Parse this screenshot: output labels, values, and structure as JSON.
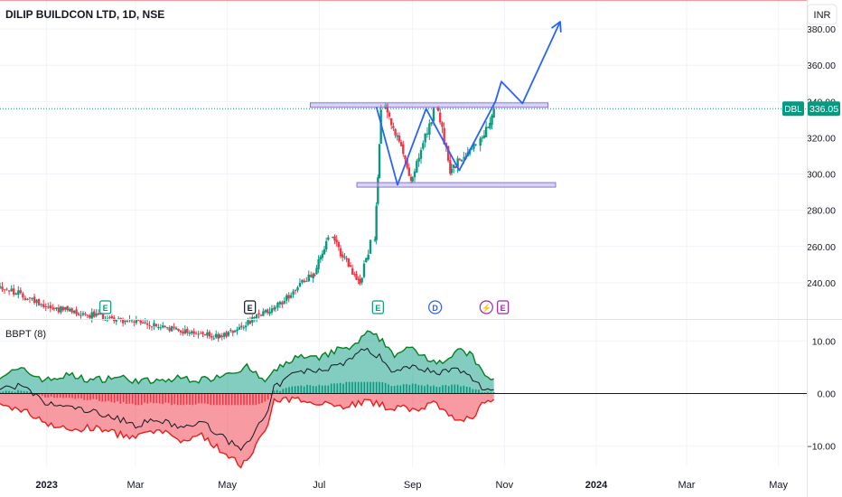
{
  "header": {
    "symbol_title": "DILIP BUILDCON LTD, 1D, NSE",
    "currency": "INR"
  },
  "price_label": {
    "ticker": "DBL",
    "value": "336.05"
  },
  "events": [
    {
      "glyph": "E",
      "date": "2023-02-09",
      "color": "#089981"
    },
    {
      "glyph": "E",
      "date": "2023-05-16",
      "color": "#131722"
    },
    {
      "glyph": "E",
      "date": "2023-08-09",
      "color": "#089981"
    },
    {
      "glyph": "D",
      "date": "2023-09-16",
      "color": "#2962ff"
    },
    {
      "glyph": "⚡",
      "date": "2023-10-20",
      "color": "#9c27b0"
    },
    {
      "glyph": "E",
      "date": "2023-10-31",
      "color": "#9c27b0"
    }
  ],
  "indicator": {
    "label": "BBPT (8)",
    "upper_level": 2.0,
    "lower_level": -2.0
  },
  "chart_data": [
    {
      "type": "candlestick",
      "pane": "price",
      "x_start": "2022-12-01",
      "x_end": "2024-05-15",
      "ylim": [
        220,
        396
      ],
      "yticks": [
        240,
        260,
        280,
        300,
        320,
        340,
        360,
        380
      ],
      "ytick_labels": [
        "240.00",
        "260.00",
        "280.00",
        "300.00",
        "320.00",
        "340.00",
        "360.00",
        "380.00"
      ],
      "last_price": 336.05,
      "colors": {
        "up": "#089981",
        "down": "#f23645"
      },
      "segments": [
        {
          "from": "2022-12-01",
          "to": "2023-01-05",
          "start": 238,
          "end": 226,
          "days": 24
        },
        {
          "from": "2023-01-06",
          "to": "2023-04-25",
          "start": 226,
          "end": 210,
          "days": 75
        },
        {
          "from": "2023-04-26",
          "to": "2023-06-01",
          "start": 210,
          "end": 226,
          "days": 26
        },
        {
          "from": "2023-06-02",
          "to": "2023-06-27",
          "start": 226,
          "end": 246,
          "days": 18
        },
        {
          "from": "2023-06-28",
          "to": "2023-07-07",
          "start": 246,
          "end": 264,
          "days": 8
        },
        {
          "from": "2023-07-10",
          "to": "2023-07-27",
          "start": 264,
          "end": 240,
          "days": 14
        },
        {
          "from": "2023-07-28",
          "to": "2023-08-04",
          "start": 240,
          "end": 262,
          "days": 6
        },
        {
          "from": "2023-08-07",
          "to": "2023-08-11",
          "start": 262,
          "end": 338,
          "days": 5
        },
        {
          "from": "2023-08-14",
          "to": "2023-08-31",
          "start": 338,
          "end": 298,
          "days": 14
        },
        {
          "from": "2023-09-01",
          "to": "2023-09-15",
          "start": 298,
          "end": 334,
          "days": 11
        },
        {
          "from": "2023-09-18",
          "to": "2023-09-26",
          "start": 334,
          "end": 302,
          "days": 7
        },
        {
          "from": "2023-09-27",
          "to": "2023-10-13",
          "start": 302,
          "end": 318,
          "days": 13
        },
        {
          "from": "2023-10-16",
          "to": "2023-10-25",
          "start": 318,
          "end": 336.05,
          "days": 8
        }
      ],
      "levels": [
        {
          "name": "resistance",
          "y": 338,
          "from": "2023-06-25",
          "to": "2023-11-30"
        },
        {
          "name": "support",
          "y": 294,
          "from": "2023-07-26",
          "to": "2023-12-05"
        }
      ],
      "projection": {
        "points": [
          {
            "date": "2023-08-08",
            "value": 337
          },
          {
            "date": "2023-08-22",
            "value": 294
          },
          {
            "date": "2023-09-10",
            "value": 336
          },
          {
            "date": "2023-10-02",
            "value": 302
          },
          {
            "date": "2023-10-26",
            "value": 340
          },
          {
            "date": "2023-10-30",
            "value": 351
          },
          {
            "date": "2023-11-13",
            "value": 339
          },
          {
            "date": "2023-12-08",
            "value": 384
          }
        ],
        "color": "#2962ff"
      }
    },
    {
      "type": "area",
      "pane": "indicator",
      "title": "BBPT (8)",
      "ylim": [
        -14,
        14
      ],
      "yticks": [
        10,
        0,
        -10
      ],
      "ytick_labels": [
        "10.00",
        "0.00",
        "−10.00"
      ],
      "bull_color": "#089981",
      "bear_color": "#f23645",
      "bull_points": [
        {
          "date": "2022-12-01",
          "value": 3.5
        },
        {
          "date": "2022-12-15",
          "value": 4.5
        },
        {
          "date": "2023-01-01",
          "value": 2.5
        },
        {
          "date": "2023-01-15",
          "value": 3.5
        },
        {
          "date": "2023-02-01",
          "value": 2.5
        },
        {
          "date": "2023-02-15",
          "value": 3.2
        },
        {
          "date": "2023-03-01",
          "value": 2.5
        },
        {
          "date": "2023-03-15",
          "value": 2.2
        },
        {
          "date": "2023-04-01",
          "value": 3.0
        },
        {
          "date": "2023-04-15",
          "value": 2.5
        },
        {
          "date": "2023-05-01",
          "value": 4.0
        },
        {
          "date": "2023-05-15",
          "value": 5.0
        },
        {
          "date": "2023-05-25",
          "value": 2.2
        },
        {
          "date": "2023-06-01",
          "value": 4.0
        },
        {
          "date": "2023-06-15",
          "value": 7.0
        },
        {
          "date": "2023-07-01",
          "value": 6.5
        },
        {
          "date": "2023-07-10",
          "value": 8.0
        },
        {
          "date": "2023-07-25",
          "value": 9.0
        },
        {
          "date": "2023-08-01",
          "value": 11.5
        },
        {
          "date": "2023-08-10",
          "value": 10.5
        },
        {
          "date": "2023-08-20",
          "value": 7.5
        },
        {
          "date": "2023-09-01",
          "value": 8.5
        },
        {
          "date": "2023-09-10",
          "value": 7.0
        },
        {
          "date": "2023-09-20",
          "value": 6.0
        },
        {
          "date": "2023-10-01",
          "value": 8.0
        },
        {
          "date": "2023-10-10",
          "value": 7.5
        },
        {
          "date": "2023-10-18",
          "value": 3.5
        },
        {
          "date": "2023-10-25",
          "value": 2.5
        }
      ],
      "bear_points": [
        {
          "date": "2022-12-01",
          "value": -2.5
        },
        {
          "date": "2022-12-15",
          "value": -3.0
        },
        {
          "date": "2023-01-01",
          "value": -5.5
        },
        {
          "date": "2023-01-15",
          "value": -7.0
        },
        {
          "date": "2023-02-01",
          "value": -6.5
        },
        {
          "date": "2023-02-15",
          "value": -7.5
        },
        {
          "date": "2023-03-01",
          "value": -8.5
        },
        {
          "date": "2023-03-15",
          "value": -7.0
        },
        {
          "date": "2023-04-01",
          "value": -9.0
        },
        {
          "date": "2023-04-15",
          "value": -8.0
        },
        {
          "date": "2023-05-01",
          "value": -12.0
        },
        {
          "date": "2023-05-10",
          "value": -13.5
        },
        {
          "date": "2023-05-20",
          "value": -10.0
        },
        {
          "date": "2023-05-28",
          "value": -6.0
        },
        {
          "date": "2023-06-01",
          "value": -1.5
        },
        {
          "date": "2023-06-15",
          "value": -1.2
        },
        {
          "date": "2023-07-01",
          "value": -1.5
        },
        {
          "date": "2023-07-15",
          "value": -2.5
        },
        {
          "date": "2023-08-01",
          "value": -1.5
        },
        {
          "date": "2023-08-15",
          "value": -2.5
        },
        {
          "date": "2023-09-01",
          "value": -3.0
        },
        {
          "date": "2023-09-15",
          "value": -2.0
        },
        {
          "date": "2023-10-01",
          "value": -5.5
        },
        {
          "date": "2023-10-10",
          "value": -4.5
        },
        {
          "date": "2023-10-18",
          "value": -1.8
        },
        {
          "date": "2023-10-25",
          "value": -1.5
        }
      ],
      "net_points": [
        {
          "date": "2022-12-01",
          "value": 1.0
        },
        {
          "date": "2022-12-15",
          "value": 1.5
        },
        {
          "date": "2023-01-01",
          "value": -2.0
        },
        {
          "date": "2023-01-15",
          "value": -2.5
        },
        {
          "date": "2023-02-01",
          "value": -3.5
        },
        {
          "date": "2023-02-15",
          "value": -4.5
        },
        {
          "date": "2023-03-01",
          "value": -6.0
        },
        {
          "date": "2023-03-15",
          "value": -5.0
        },
        {
          "date": "2023-04-01",
          "value": -6.5
        },
        {
          "date": "2023-04-15",
          "value": -5.5
        },
        {
          "date": "2023-05-01",
          "value": -9.0
        },
        {
          "date": "2023-05-10",
          "value": -10.5
        },
        {
          "date": "2023-05-20",
          "value": -7.0
        },
        {
          "date": "2023-05-28",
          "value": -3.5
        },
        {
          "date": "2023-06-01",
          "value": 1.0
        },
        {
          "date": "2023-06-15",
          "value": 4.0
        },
        {
          "date": "2023-07-01",
          "value": 4.5
        },
        {
          "date": "2023-07-15",
          "value": 5.5
        },
        {
          "date": "2023-08-01",
          "value": 8.5
        },
        {
          "date": "2023-08-10",
          "value": 7.0
        },
        {
          "date": "2023-08-20",
          "value": 4.0
        },
        {
          "date": "2023-09-01",
          "value": 5.5
        },
        {
          "date": "2023-09-15",
          "value": 4.0
        },
        {
          "date": "2023-10-01",
          "value": 4.5
        },
        {
          "date": "2023-10-10",
          "value": 3.0
        },
        {
          "date": "2023-10-18",
          "value": 0.8
        },
        {
          "date": "2023-10-25",
          "value": 1.0
        }
      ]
    }
  ],
  "x_axis": {
    "ticks": [
      {
        "label": "2023",
        "date": "2023-01-01",
        "bold": true
      },
      {
        "label": "Mar",
        "date": "2023-03-01",
        "bold": false
      },
      {
        "label": "May",
        "date": "2023-05-01",
        "bold": false
      },
      {
        "label": "Jul",
        "date": "2023-07-01",
        "bold": false
      },
      {
        "label": "Sep",
        "date": "2023-09-01",
        "bold": false
      },
      {
        "label": "Nov",
        "date": "2023-11-01",
        "bold": false
      },
      {
        "label": "2024",
        "date": "2024-01-01",
        "bold": true
      },
      {
        "label": "Mar",
        "date": "2024-03-01",
        "bold": false
      },
      {
        "label": "May",
        "date": "2024-05-01",
        "bold": false
      }
    ]
  }
}
